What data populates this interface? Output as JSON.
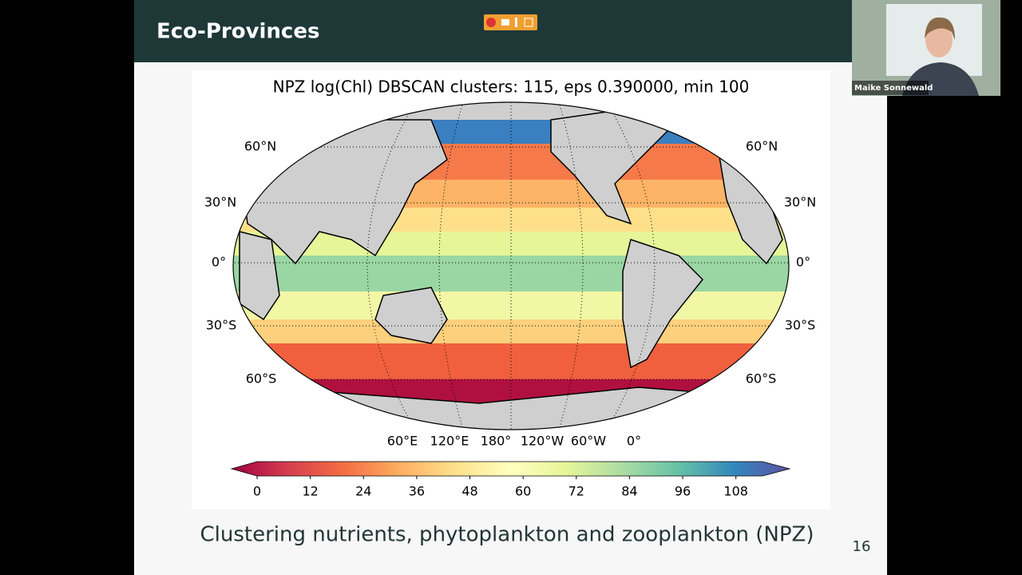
{
  "slide": {
    "title": "Eco-Provinces",
    "caption": "Clustering nutrients, phytoplankton and zooplankton (NPZ)",
    "page_number": "16"
  },
  "figure": {
    "title": "NPZ log(Chl) DBSCAN clusters: 115, eps 0.390000, min 100",
    "lat_labels": [
      "60°N",
      "30°N",
      "0°",
      "30°S",
      "60°S"
    ],
    "lon_labels": [
      "60°E",
      "120°E",
      "180°",
      "120°W",
      "60°W",
      "0°"
    ],
    "colorbar": {
      "lim": [
        0,
        114
      ],
      "ticks": [
        0,
        12,
        24,
        36,
        48,
        60,
        72,
        84,
        96,
        108
      ]
    }
  },
  "webcam": {
    "name": "Maike Sonnewald"
  }
}
